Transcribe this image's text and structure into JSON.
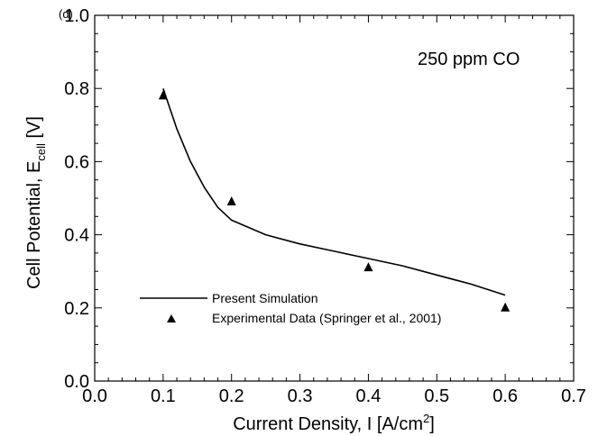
{
  "chart_data": {
    "type": "line",
    "panel_label": "(d)",
    "annotation": "250 ppm CO",
    "xlabel": {
      "main": "Current Density, I [A/cm",
      "sup": "2",
      "end": "]"
    },
    "ylabel": {
      "main": "Cell Potential, E",
      "sub": "cell",
      "end": " [V]"
    },
    "xlim": [
      0.0,
      0.7
    ],
    "ylim": [
      0.0,
      1.0
    ],
    "xticks": [
      "0.0",
      "0.1",
      "0.2",
      "0.3",
      "0.4",
      "0.5",
      "0.6",
      "0.7"
    ],
    "yticks": [
      "0.0",
      "0.2",
      "0.4",
      "0.6",
      "0.8",
      "1.0"
    ],
    "grid": false,
    "legend_position": "lower-left",
    "series": [
      {
        "name": "Present Simulation",
        "kind": "line",
        "x": [
          0.1,
          0.12,
          0.14,
          0.16,
          0.18,
          0.2,
          0.25,
          0.3,
          0.35,
          0.4,
          0.45,
          0.5,
          0.55,
          0.6
        ],
        "y": [
          0.8,
          0.69,
          0.6,
          0.53,
          0.475,
          0.44,
          0.4,
          0.375,
          0.355,
          0.335,
          0.315,
          0.29,
          0.265,
          0.235
        ]
      },
      {
        "name": "Experimental Data (Springer et al., 2001)",
        "kind": "scatter",
        "marker": "triangle",
        "x": [
          0.1,
          0.2,
          0.4,
          0.6
        ],
        "y": [
          0.78,
          0.49,
          0.31,
          0.2
        ]
      }
    ]
  }
}
